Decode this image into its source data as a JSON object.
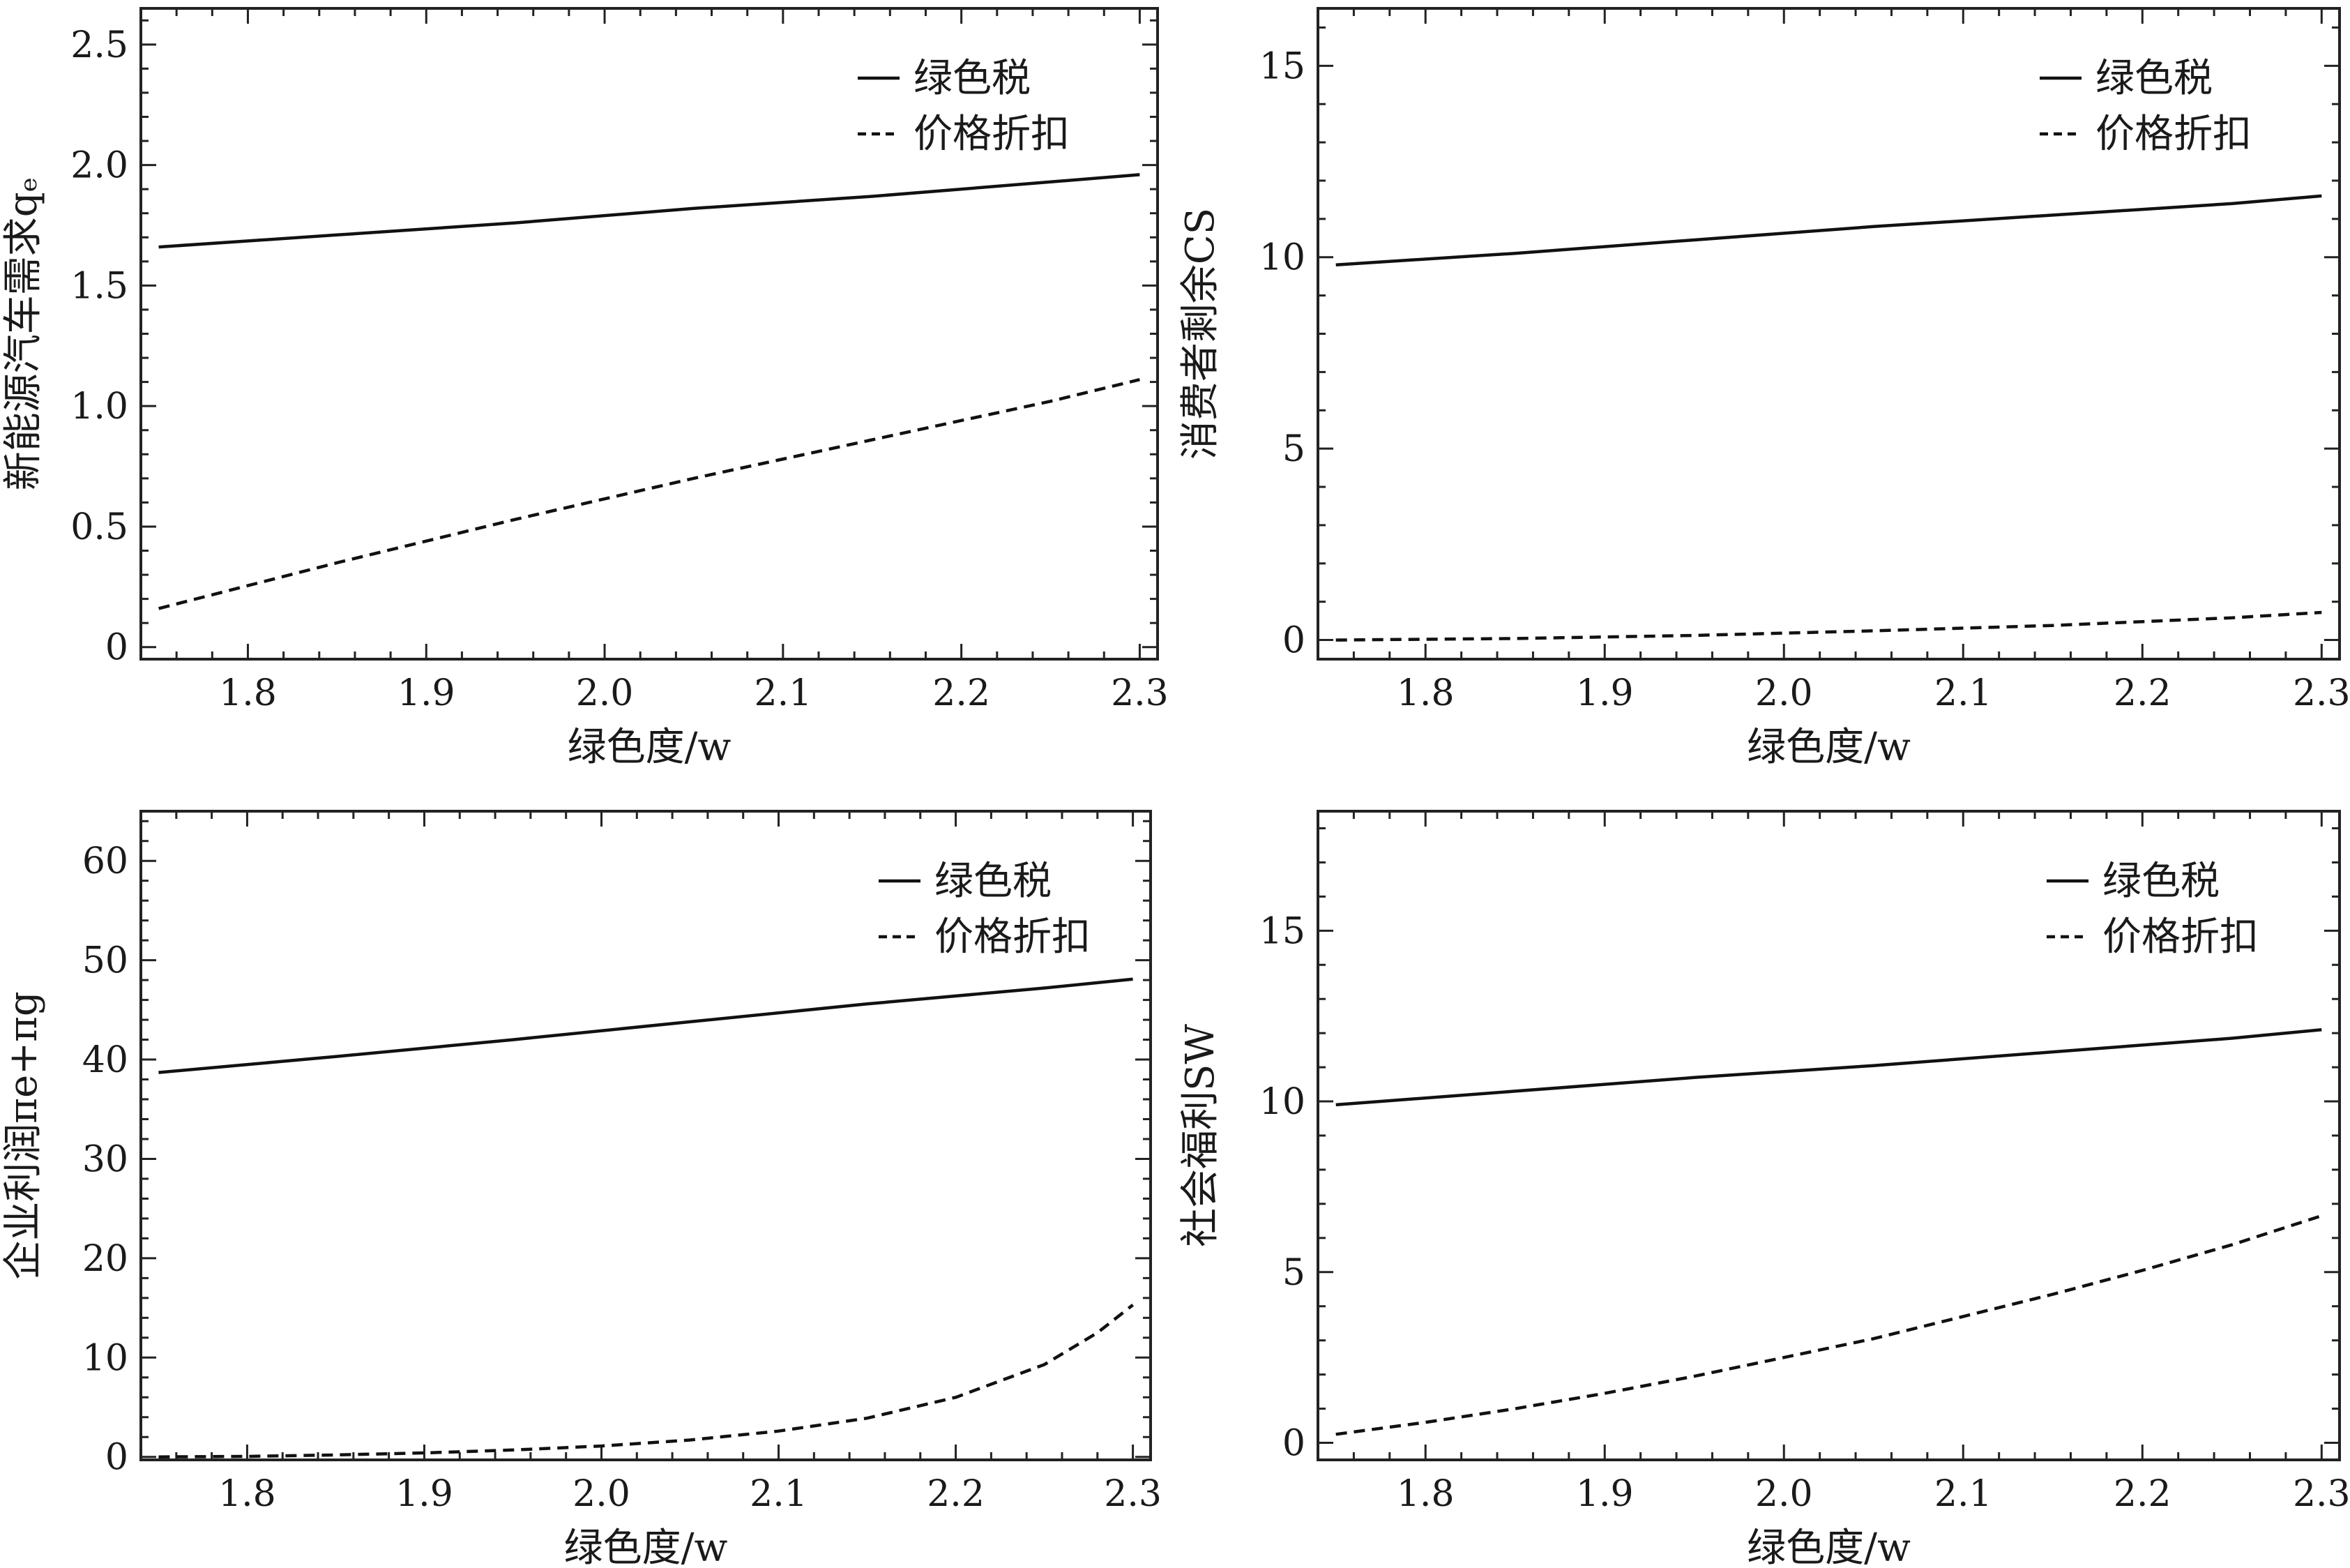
{
  "chart_data": [
    {
      "type": "line",
      "id": "qe",
      "xlabel": "绿色度/w",
      "ylabel": "新能源汽车需求qₑ",
      "xlim": [
        1.74,
        2.31
      ],
      "ylim": [
        -0.05,
        2.65
      ],
      "xticks": [
        1.8,
        1.9,
        2.0,
        2.1,
        2.2,
        2.3
      ],
      "xtick_labels": [
        "1.8",
        "1.9",
        "2.0",
        "2.1",
        "2.2",
        "2.3"
      ],
      "yticks": [
        0,
        0.5,
        1.0,
        1.5,
        2.0,
        2.5
      ],
      "ytick_labels": [
        "0",
        "0.5",
        "1.0",
        "1.5",
        "2.0",
        "2.5"
      ],
      "legend_position": "top-right",
      "grid": false,
      "series": [
        {
          "name": "绿色税",
          "style": "solid",
          "x": [
            1.75,
            1.85,
            1.95,
            2.05,
            2.15,
            2.25,
            2.3
          ],
          "y": [
            1.66,
            1.71,
            1.76,
            1.82,
            1.87,
            1.93,
            1.96
          ]
        },
        {
          "name": "价格折扣",
          "style": "dashed",
          "x": [
            1.75,
            1.85,
            1.95,
            2.05,
            2.15,
            2.25,
            2.3
          ],
          "y": [
            0.16,
            0.35,
            0.53,
            0.7,
            0.86,
            1.02,
            1.11
          ]
        }
      ]
    },
    {
      "type": "line",
      "id": "cs",
      "xlabel": "绿色度/w",
      "ylabel": "消费者剩余CS",
      "xlim": [
        1.74,
        2.31
      ],
      "ylim": [
        -0.5,
        16.5
      ],
      "xticks": [
        1.8,
        1.9,
        2.0,
        2.1,
        2.2,
        2.3
      ],
      "xtick_labels": [
        "1.8",
        "1.9",
        "2.0",
        "2.1",
        "2.2",
        "2.3"
      ],
      "yticks": [
        0,
        5,
        10,
        15
      ],
      "ytick_labels": [
        "0",
        "5",
        "10",
        "15"
      ],
      "legend_position": "top-right",
      "grid": false,
      "series": [
        {
          "name": "绿色税",
          "style": "solid",
          "x": [
            1.75,
            1.85,
            1.95,
            2.05,
            2.15,
            2.25,
            2.3
          ],
          "y": [
            9.8,
            10.1,
            10.45,
            10.8,
            11.1,
            11.4,
            11.6
          ]
        },
        {
          "name": "价格折扣",
          "style": "dashed",
          "x": [
            1.75,
            1.85,
            1.95,
            2.05,
            2.15,
            2.25,
            2.3
          ],
          "y": [
            0.0,
            0.04,
            0.12,
            0.24,
            0.38,
            0.58,
            0.72
          ]
        }
      ]
    },
    {
      "type": "line",
      "id": "profit",
      "xlabel": "绿色度/w",
      "ylabel": "企业利润πe+πg",
      "xlim": [
        1.74,
        2.31
      ],
      "ylim": [
        -0.3,
        65
      ],
      "xticks": [
        1.8,
        1.9,
        2.0,
        2.1,
        2.2,
        2.3
      ],
      "xtick_labels": [
        "1.8",
        "1.9",
        "2.0",
        "2.1",
        "2.2",
        "2.3"
      ],
      "yticks": [
        0,
        10,
        20,
        30,
        40,
        50,
        60
      ],
      "ytick_labels": [
        "0",
        "10",
        "20",
        "30",
        "40",
        "50",
        "60"
      ],
      "legend_position": "top-right",
      "grid": false,
      "series": [
        {
          "name": "绿色税",
          "style": "solid",
          "x": [
            1.75,
            1.85,
            1.95,
            2.05,
            2.15,
            2.25,
            2.3
          ],
          "y": [
            38.7,
            40.3,
            42.0,
            43.8,
            45.6,
            47.2,
            48.1
          ]
        },
        {
          "name": "价格折扣",
          "style": "dashed",
          "x": [
            1.75,
            1.8,
            1.85,
            1.9,
            1.95,
            2.0,
            2.05,
            2.1,
            2.15,
            2.2,
            2.25,
            2.28,
            2.3
          ],
          "y": [
            0.0,
            0.05,
            0.2,
            0.4,
            0.7,
            1.1,
            1.7,
            2.6,
            3.9,
            6.0,
            9.3,
            12.5,
            15.3
          ]
        }
      ]
    },
    {
      "type": "line",
      "id": "sw",
      "xlabel": "绿色度/w",
      "ylabel": "社会福利SW",
      "xlim": [
        1.74,
        2.31
      ],
      "ylim": [
        -0.5,
        18.5
      ],
      "xticks": [
        1.8,
        1.9,
        2.0,
        2.1,
        2.2,
        2.3
      ],
      "xtick_labels": [
        "1.8",
        "1.9",
        "2.0",
        "2.1",
        "2.2",
        "2.3"
      ],
      "yticks": [
        0,
        5,
        10,
        15
      ],
      "ytick_labels": [
        "0",
        "5",
        "10",
        "15"
      ],
      "legend_position": "top-right",
      "grid": false,
      "series": [
        {
          "name": "绿色税",
          "style": "solid",
          "x": [
            1.75,
            1.85,
            1.95,
            2.05,
            2.15,
            2.25,
            2.3
          ],
          "y": [
            9.9,
            10.3,
            10.7,
            11.05,
            11.45,
            11.85,
            12.1
          ]
        },
        {
          "name": "价格折扣",
          "style": "dashed",
          "x": [
            1.75,
            1.8,
            1.85,
            1.9,
            1.95,
            2.0,
            2.05,
            2.1,
            2.15,
            2.2,
            2.25,
            2.3
          ],
          "y": [
            0.25,
            0.6,
            1.0,
            1.45,
            1.95,
            2.5,
            3.05,
            3.7,
            4.35,
            5.05,
            5.8,
            6.65
          ]
        }
      ]
    }
  ]
}
